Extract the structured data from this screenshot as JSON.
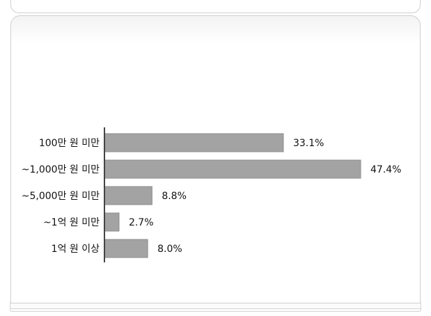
{
  "chart_data": {
    "type": "bar",
    "orientation": "horizontal",
    "title": "",
    "xlabel": "",
    "ylabel": "",
    "categories": [
      "100만 원 미만",
      "~1,000만 원 미만",
      "~5,000만 원 미만",
      "~1억 원 미만",
      "1억 원 이상"
    ],
    "values": [
      33.1,
      47.4,
      8.8,
      2.7,
      8.0
    ],
    "value_labels": [
      "33.1%",
      "47.4%",
      "8.8%",
      "2.7%",
      "8.0%"
    ],
    "xlim": [
      0,
      50
    ],
    "grid": false,
    "legend": "none",
    "colors": {
      "bar": "#a3a3a3",
      "bar_border": "#8c8c8c",
      "axis": "#444444",
      "text": "#111111"
    }
  }
}
